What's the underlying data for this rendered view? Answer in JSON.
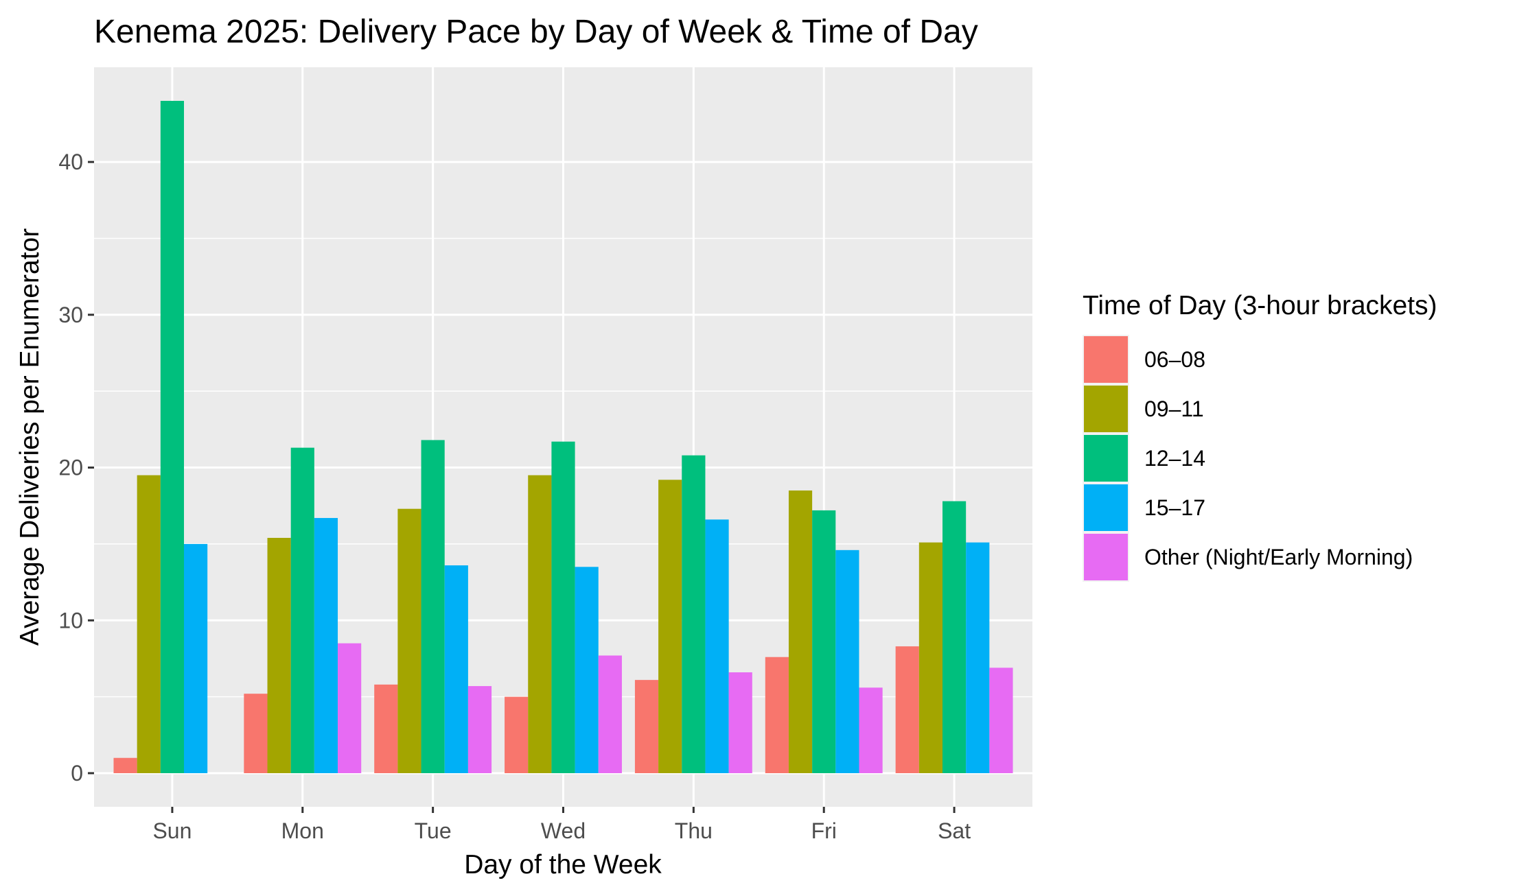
{
  "chart_data": {
    "type": "bar",
    "title": "Kenema 2025: Delivery Pace by Day of Week & Time of Day",
    "xlabel": "Day of the Week",
    "ylabel": "Average Deliveries per Enumerator",
    "categories": [
      "Sun",
      "Mon",
      "Tue",
      "Wed",
      "Thu",
      "Fri",
      "Sat"
    ],
    "ylim": [
      -2.2,
      46.2
    ],
    "yticks": [
      0,
      10,
      20,
      30,
      40
    ],
    "grid": true,
    "legend": {
      "title": "Time of Day (3-hour brackets)",
      "position": "right"
    },
    "series": [
      {
        "name": "06–08",
        "color": "#F8766D",
        "values": [
          1.0,
          5.2,
          5.8,
          5.0,
          6.1,
          7.6,
          8.3
        ]
      },
      {
        "name": "09–11",
        "color": "#A3A500",
        "values": [
          19.5,
          15.4,
          17.3,
          19.5,
          19.2,
          18.5,
          15.1
        ]
      },
      {
        "name": "12–14",
        "color": "#00BF7D",
        "values": [
          44.0,
          21.3,
          21.8,
          21.7,
          20.8,
          17.2,
          17.8
        ]
      },
      {
        "name": "15–17",
        "color": "#00B0F6",
        "values": [
          15.0,
          16.7,
          13.6,
          13.5,
          16.6,
          14.6,
          15.1
        ]
      },
      {
        "name": "Other (Night/Early Morning)",
        "color": "#E76BF3",
        "values": [
          null,
          8.5,
          5.7,
          7.7,
          6.6,
          5.6,
          6.9
        ]
      }
    ]
  }
}
